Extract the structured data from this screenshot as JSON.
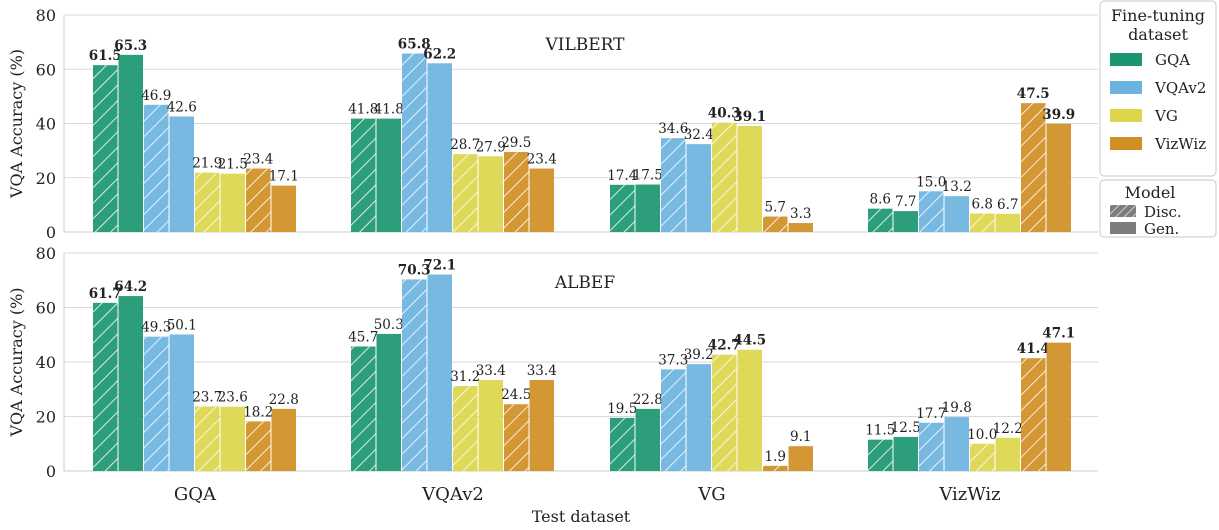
{
  "chart_data": {
    "type": "bar",
    "categories": [
      "GQA",
      "VQAv2",
      "VG",
      "VizWiz"
    ],
    "xlabel": "Test dataset",
    "ylabel": "VQA Accuracy (%)",
    "ylim": [
      0,
      80
    ],
    "yticks": [
      0,
      20,
      40,
      60,
      80
    ],
    "colors": {
      "GQA": "#1b9670",
      "VQAv2": "#6db3df",
      "VG": "#dcd64c",
      "VizWiz": "#cf8f23"
    },
    "fine_tuning_datasets": [
      "GQA",
      "VQAv2",
      "VG",
      "VizWiz"
    ],
    "models": [
      "Disc.",
      "Gen."
    ],
    "panels": [
      {
        "title": "VILBERT",
        "groups": [
          {
            "test": "GQA",
            "values": [
              61.5,
              65.3,
              46.9,
              42.6,
              21.9,
              21.5,
              23.4,
              17.1
            ],
            "bold": [
              true,
              true,
              false,
              false,
              false,
              false,
              false,
              false
            ]
          },
          {
            "test": "VQAv2",
            "values": [
              41.8,
              41.8,
              65.8,
              62.2,
              28.7,
              27.9,
              29.5,
              23.4
            ],
            "bold": [
              false,
              false,
              true,
              true,
              false,
              false,
              false,
              false
            ]
          },
          {
            "test": "VG",
            "values": [
              17.4,
              17.5,
              34.6,
              32.4,
              40.3,
              39.1,
              5.7,
              3.3
            ],
            "bold": [
              false,
              false,
              false,
              false,
              true,
              true,
              false,
              false
            ]
          },
          {
            "test": "VizWiz",
            "values": [
              8.6,
              7.7,
              15.0,
              13.2,
              6.8,
              6.7,
              47.5,
              39.9
            ],
            "bold": [
              false,
              false,
              false,
              false,
              false,
              false,
              true,
              true
            ]
          }
        ]
      },
      {
        "title": "ALBEF",
        "groups": [
          {
            "test": "GQA",
            "values": [
              61.7,
              64.2,
              49.3,
              50.1,
              23.7,
              23.6,
              18.2,
              22.8
            ],
            "bold": [
              true,
              true,
              false,
              false,
              false,
              false,
              false,
              false
            ]
          },
          {
            "test": "VQAv2",
            "values": [
              45.7,
              50.3,
              70.3,
              72.1,
              31.2,
              33.4,
              24.5,
              33.4
            ],
            "bold": [
              false,
              false,
              true,
              true,
              false,
              false,
              false,
              false
            ]
          },
          {
            "test": "VG",
            "values": [
              19.5,
              22.8,
              37.3,
              39.2,
              42.7,
              44.5,
              1.9,
              9.1
            ],
            "bold": [
              false,
              false,
              false,
              false,
              true,
              true,
              false,
              false
            ]
          },
          {
            "test": "VizWiz",
            "values": [
              11.5,
              12.5,
              17.7,
              19.8,
              10.0,
              12.2,
              41.4,
              47.1
            ],
            "bold": [
              false,
              false,
              false,
              false,
              false,
              false,
              true,
              true
            ]
          }
        ]
      }
    ],
    "legend": {
      "finetune_title": [
        "Fine-tuning",
        "dataset"
      ],
      "model_title": "Model",
      "placement": "right"
    },
    "grid": true
  }
}
